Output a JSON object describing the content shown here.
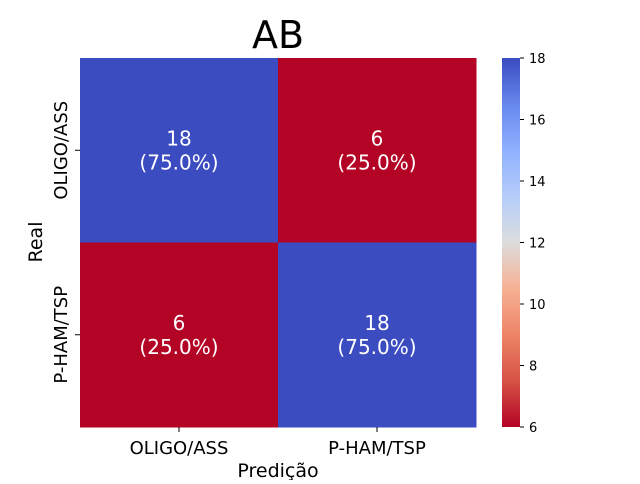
{
  "chart_data": {
    "type": "heatmap",
    "title": "AB",
    "xlabel": "Predição",
    "ylabel": "Real",
    "x_categories": [
      "OLIGO/ASS",
      "P-HAM/TSP"
    ],
    "y_categories": [
      "OLIGO/ASS",
      "P-HAM/TSP"
    ],
    "values": [
      [
        18,
        6
      ],
      [
        6,
        18
      ]
    ],
    "annotations": [
      [
        {
          "count": "18",
          "percent": "(75.0%)"
        },
        {
          "count": "6",
          "percent": "(25.0%)"
        }
      ],
      [
        {
          "count": "6",
          "percent": "(25.0%)"
        },
        {
          "count": "18",
          "percent": "(75.0%)"
        }
      ]
    ],
    "colormap": "coolwarm_r",
    "colorbar": {
      "min": 6,
      "max": 18,
      "ticks": [
        "6",
        "8",
        "10",
        "12",
        "14",
        "16",
        "18"
      ]
    },
    "colors": {
      "high": "#3b4cc0",
      "low": "#b40426"
    }
  }
}
